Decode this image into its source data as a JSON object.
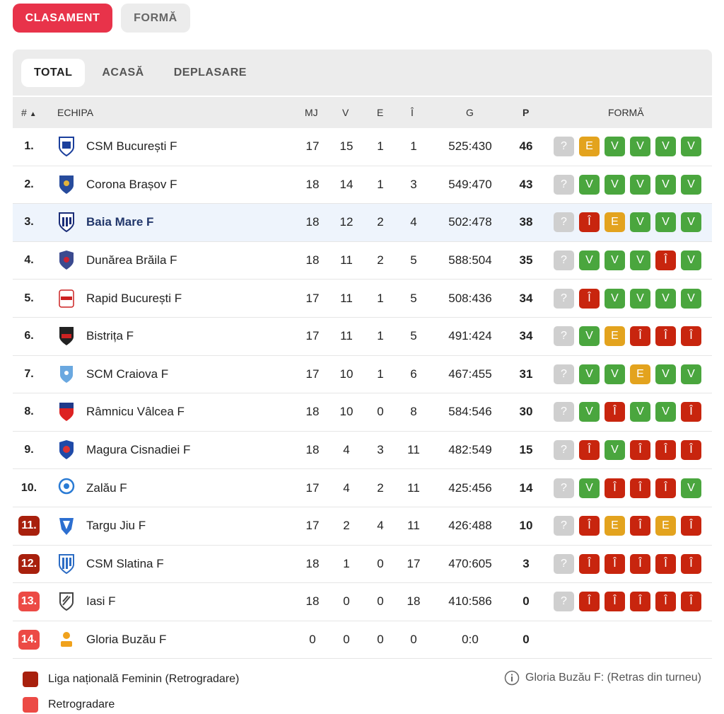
{
  "top_tabs": [
    {
      "label": "CLASAMENT",
      "active": true
    },
    {
      "label": "FORMĂ",
      "active": false
    }
  ],
  "sub_tabs": [
    {
      "label": "TOTAL",
      "active": true
    },
    {
      "label": "ACASĂ",
      "active": false
    },
    {
      "label": "DEPLASARE",
      "active": false
    }
  ],
  "columns": {
    "pos": "#",
    "sort_icon": "▲",
    "team": "ECHIPA",
    "mj": "MJ",
    "v": "V",
    "e": "E",
    "i": "Î",
    "g": "G",
    "p": "P",
    "form": "FORMĂ"
  },
  "rows": [
    {
      "pos": "1.",
      "team": "CSM București F",
      "mj": "17",
      "v": "15",
      "e": "1",
      "i": "1",
      "g": "525:430",
      "p": "46",
      "form": [
        "?",
        "E",
        "V",
        "V",
        "V",
        "V"
      ],
      "logo": "csm-bucuresti-logo"
    },
    {
      "pos": "2.",
      "team": "Corona Brașov F",
      "mj": "18",
      "v": "14",
      "e": "1",
      "i": "3",
      "g": "549:470",
      "p": "43",
      "form": [
        "?",
        "V",
        "V",
        "V",
        "V",
        "V"
      ],
      "logo": "corona-brasov-logo"
    },
    {
      "pos": "3.",
      "team": "Baia Mare F",
      "mj": "18",
      "v": "12",
      "e": "2",
      "i": "4",
      "g": "502:478",
      "p": "38",
      "form": [
        "?",
        "Î",
        "E",
        "V",
        "V",
        "V"
      ],
      "highlight": true,
      "logo": "baia-mare-logo"
    },
    {
      "pos": "4.",
      "team": "Dunărea Brăila F",
      "mj": "18",
      "v": "11",
      "e": "2",
      "i": "5",
      "g": "588:504",
      "p": "35",
      "form": [
        "?",
        "V",
        "V",
        "V",
        "Î",
        "V"
      ],
      "logo": "dunarea-braila-logo"
    },
    {
      "pos": "5.",
      "team": "Rapid București F",
      "mj": "17",
      "v": "11",
      "e": "1",
      "i": "5",
      "g": "508:436",
      "p": "34",
      "form": [
        "?",
        "Î",
        "V",
        "V",
        "V",
        "V"
      ],
      "logo": "rapid-bucuresti-logo"
    },
    {
      "pos": "6.",
      "team": "Bistrița F",
      "mj": "17",
      "v": "11",
      "e": "1",
      "i": "5",
      "g": "491:424",
      "p": "34",
      "form": [
        "?",
        "V",
        "E",
        "Î",
        "Î",
        "Î"
      ],
      "logo": "bistrita-logo"
    },
    {
      "pos": "7.",
      "team": "SCM Craiova F",
      "mj": "17",
      "v": "10",
      "e": "1",
      "i": "6",
      "g": "467:455",
      "p": "31",
      "form": [
        "?",
        "V",
        "V",
        "E",
        "V",
        "V"
      ],
      "logo": "scm-craiova-logo"
    },
    {
      "pos": "8.",
      "team": "Râmnicu Vâlcea F",
      "mj": "18",
      "v": "10",
      "e": "0",
      "i": "8",
      "g": "584:546",
      "p": "30",
      "form": [
        "?",
        "V",
        "Î",
        "V",
        "V",
        "Î"
      ],
      "logo": "ramnicu-valcea-logo"
    },
    {
      "pos": "9.",
      "team": "Magura Cisnadiei F",
      "mj": "18",
      "v": "4",
      "e": "3",
      "i": "11",
      "g": "482:549",
      "p": "15",
      "form": [
        "?",
        "Î",
        "V",
        "Î",
        "Î",
        "Î"
      ],
      "logo": "magura-cisnadie-logo"
    },
    {
      "pos": "10.",
      "team": "Zalău F",
      "mj": "17",
      "v": "4",
      "e": "2",
      "i": "11",
      "g": "425:456",
      "p": "14",
      "form": [
        "?",
        "V",
        "Î",
        "Î",
        "Î",
        "V"
      ],
      "logo": "zalau-logo"
    },
    {
      "pos": "11.",
      "team": "Targu Jiu F",
      "mj": "17",
      "v": "2",
      "e": "4",
      "i": "11",
      "g": "426:488",
      "p": "10",
      "form": [
        "?",
        "Î",
        "E",
        "Î",
        "E",
        "Î"
      ],
      "zone": "dark",
      "logo": "targu-jiu-logo"
    },
    {
      "pos": "12.",
      "team": "CSM Slatina F",
      "mj": "18",
      "v": "1",
      "e": "0",
      "i": "17",
      "g": "470:605",
      "p": "3",
      "form": [
        "?",
        "Î",
        "Î",
        "Î",
        "Î",
        "Î"
      ],
      "zone": "dark",
      "logo": "csm-slatina-logo"
    },
    {
      "pos": "13.",
      "team": "Iasi F",
      "mj": "18",
      "v": "0",
      "e": "0",
      "i": "18",
      "g": "410:586",
      "p": "0",
      "form": [
        "?",
        "Î",
        "Î",
        "Î",
        "Î",
        "Î"
      ],
      "zone": "light",
      "logo": "iasi-logo"
    },
    {
      "pos": "14.",
      "team": "Gloria Buzău F",
      "mj": "0",
      "v": "0",
      "e": "0",
      "i": "0",
      "g": "0:0",
      "p": "0",
      "form": [],
      "zone": "light",
      "logo": "gloria-buzau-logo"
    }
  ],
  "legend": [
    {
      "label": "Liga națională Feminin (Retrogradare)",
      "color": "#a8200d"
    },
    {
      "label": "Retrogradare",
      "color": "#ec4a45"
    }
  ],
  "note": {
    "icon": "info-icon",
    "text": "Gloria Buzău F: (Retras din turneu)"
  },
  "colors": {
    "accent": "#e8334a",
    "win": "#4aa63e",
    "draw": "#e3a31e",
    "loss": "#c8250e",
    "unknown": "#cfcfcf"
  }
}
